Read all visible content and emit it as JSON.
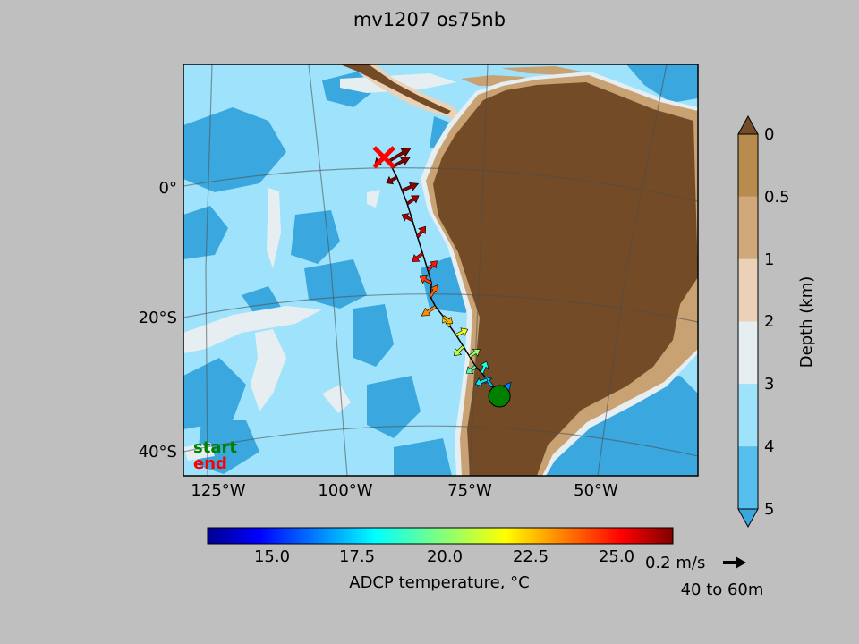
{
  "title": "mv1207 os75nb",
  "colors": {
    "figure_bg": "#bfbfbf",
    "ocean_deep": "#3aa8de",
    "ocean_mid": "#9ee3fb",
    "ocean_shelf": "#e6eef2",
    "shelf_light": "#ead1b8",
    "land_low": "#c9a274",
    "land": "#734c27",
    "start_marker": "#008000",
    "end_marker": "#ff0000"
  },
  "map": {
    "lat_labels": [
      "0°",
      "20°S",
      "40°S"
    ],
    "lon_labels": [
      "125°W",
      "100°W",
      "75°W",
      "50°W"
    ],
    "legend": {
      "start": "start",
      "end": "end"
    },
    "start_icon": "green-circle",
    "end_icon": "red-x"
  },
  "depth_colorbar": {
    "label": "Depth (km)",
    "ticks": [
      "0",
      "0.5",
      "1",
      "2",
      "3",
      "4",
      "5"
    ],
    "colors": [
      "#b88c4f",
      "#d0a87a",
      "#ead1b8",
      "#e6eef2",
      "#9ee3fb",
      "#57bfee",
      "#3aa8de"
    ],
    "extend_top_color": "#734c27",
    "extend_bottom_color": "#3aa8de"
  },
  "temp_colorbar": {
    "label": "ADCP temperature, °C",
    "ticks": [
      "15.0",
      "17.5",
      "20.0",
      "22.5",
      "25.0"
    ],
    "colormap": "jet"
  },
  "quiver_key": {
    "label": "0.2 m/s",
    "depth_range": "40 to 60m"
  },
  "chart_data": {
    "type": "map-quiver",
    "title": "mv1207 os75nb",
    "lon_range": [
      -133,
      -33
    ],
    "lat_range": [
      -45,
      17
    ],
    "grid_lons": [
      -125,
      -100,
      -75,
      -50
    ],
    "grid_lats": [
      0,
      -20,
      -40
    ],
    "temperature_range": [
      13.2,
      26.2
    ],
    "depth_range_km": [
      0,
      5
    ],
    "depth_bin": "40 to 60m",
    "quiver_scale_ms": 0.2,
    "start": {
      "lon": -71.6,
      "lat": -33.0
    },
    "end": {
      "lon": -94.0,
      "lat": 3.0
    },
    "track": [
      {
        "lon": -71.6,
        "lat": -33.0,
        "u": 0.1,
        "v": 0.12,
        "temp": 16.5
      },
      {
        "lon": -73.0,
        "lat": -31.5,
        "u": -0.06,
        "v": 0.08,
        "temp": 17.2
      },
      {
        "lon": -74.0,
        "lat": -30.5,
        "u": -0.1,
        "v": -0.04,
        "temp": 17.8
      },
      {
        "lon": -75.0,
        "lat": -29.5,
        "u": 0.04,
        "v": 0.1,
        "temp": 18.5
      },
      {
        "lon": -76.2,
        "lat": -28.5,
        "u": -0.08,
        "v": -0.06,
        "temp": 19.1
      },
      {
        "lon": -77.4,
        "lat": -27.0,
        "u": 0.09,
        "v": 0.06,
        "temp": 20.0
      },
      {
        "lon": -78.6,
        "lat": -25.5,
        "u": -0.08,
        "v": -0.08,
        "temp": 20.6
      },
      {
        "lon": -80.0,
        "lat": -23.8,
        "u": 0.1,
        "v": 0.05,
        "temp": 21.2
      },
      {
        "lon": -81.2,
        "lat": -22.5,
        "u": -0.06,
        "v": 0.09,
        "temp": 21.8
      },
      {
        "lon": -82.5,
        "lat": -21.0,
        "u": 0.08,
        "v": -0.06,
        "temp": 22.3
      },
      {
        "lon": -84.0,
        "lat": -19.5,
        "u": -0.12,
        "v": -0.08,
        "temp": 22.8
      },
      {
        "lon": -85.0,
        "lat": -18.0,
        "u": 0.06,
        "v": 0.1,
        "temp": 23.3
      },
      {
        "lon": -84.8,
        "lat": -16.0,
        "u": -0.1,
        "v": 0.06,
        "temp": 23.8
      },
      {
        "lon": -85.5,
        "lat": -14.0,
        "u": 0.08,
        "v": 0.08,
        "temp": 24.3
      },
      {
        "lon": -86.5,
        "lat": -11.5,
        "u": -0.09,
        "v": -0.07,
        "temp": 24.8
      },
      {
        "lon": -87.5,
        "lat": -9.0,
        "u": 0.07,
        "v": 0.09,
        "temp": 25.2
      },
      {
        "lon": -88.5,
        "lat": -6.5,
        "u": -0.09,
        "v": 0.05,
        "temp": 25.5
      },
      {
        "lon": -89.5,
        "lat": -4.0,
        "u": 0.1,
        "v": 0.07,
        "temp": 25.8
      },
      {
        "lon": -90.5,
        "lat": -2.0,
        "u": 0.14,
        "v": 0.06,
        "temp": 26.0
      },
      {
        "lon": -91.5,
        "lat": 0.0,
        "u": -0.09,
        "v": -0.05,
        "temp": 26.1
      },
      {
        "lon": -92.5,
        "lat": 1.5,
        "u": 0.16,
        "v": 0.09,
        "temp": 26.1
      },
      {
        "lon": -93.3,
        "lat": 2.3,
        "u": 0.2,
        "v": 0.12,
        "temp": 26.2
      },
      {
        "lon": -94.0,
        "lat": 3.0,
        "u": -0.08,
        "v": -0.06,
        "temp": 26.2
      }
    ]
  }
}
